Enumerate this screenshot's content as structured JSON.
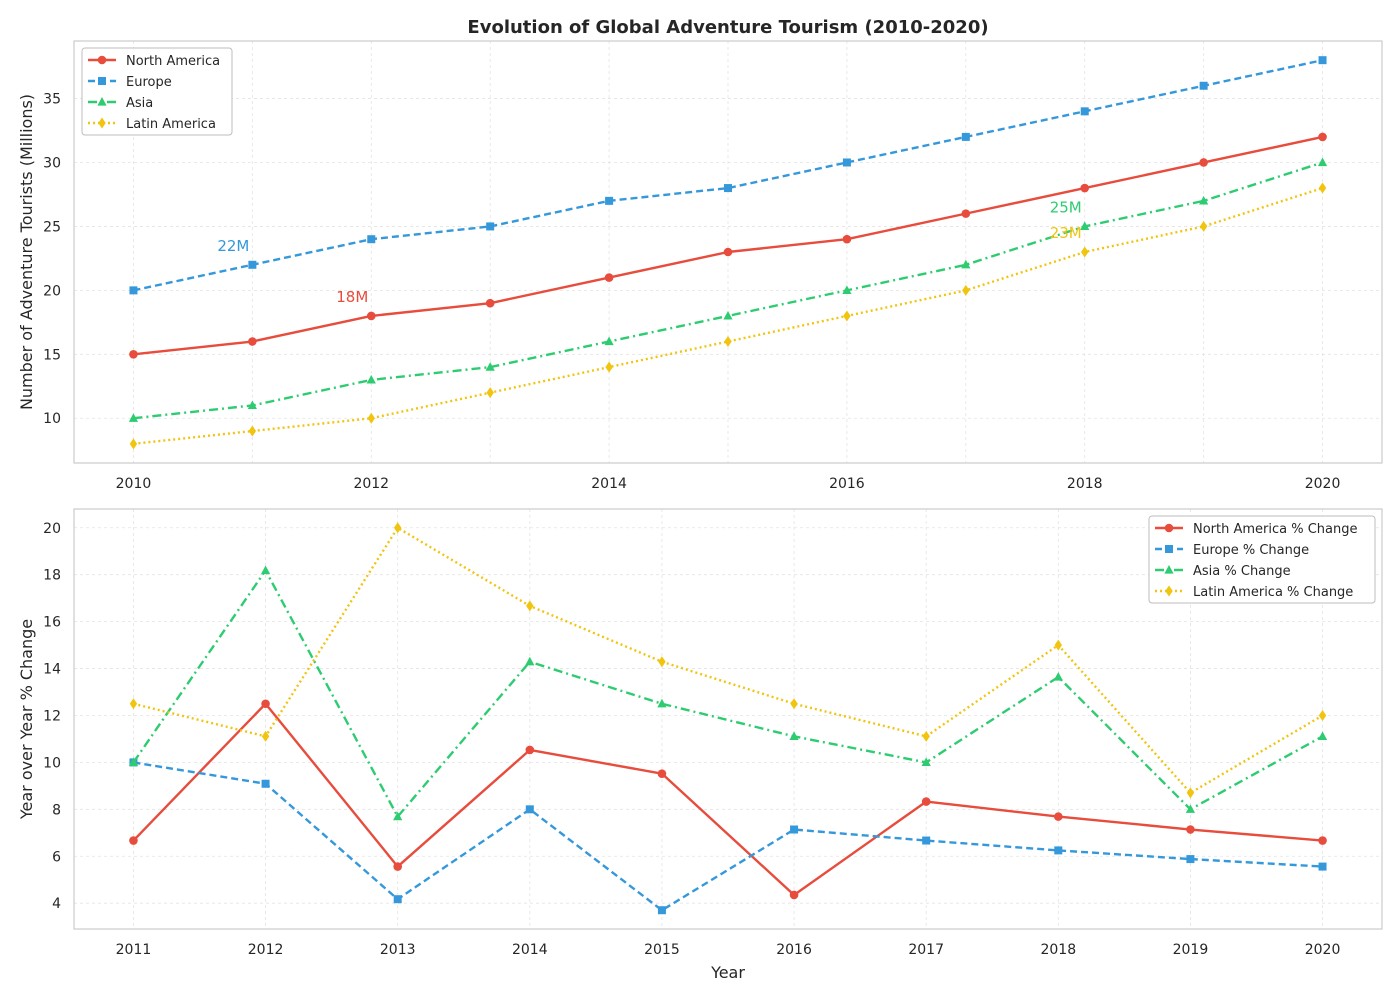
{
  "title": "Evolution of Global Adventure Tourism (2010-2020)",
  "chart_data": [
    {
      "type": "line",
      "title": "Evolution of Global Adventure Tourism (2010-2020)",
      "xlabel": "",
      "ylabel": "Number of Adventure Tourists (Millions)",
      "x": [
        2010,
        2011,
        2012,
        2013,
        2014,
        2015,
        2016,
        2017,
        2018,
        2019,
        2020
      ],
      "x_ticks": [
        "2010",
        "2012",
        "2014",
        "2016",
        "2018",
        "2020"
      ],
      "xlim": [
        2009.5,
        2020.5
      ],
      "ylim": [
        6.5,
        39.5
      ],
      "y_ticks": [
        10,
        15,
        20,
        25,
        30,
        35
      ],
      "grid": true,
      "legend_position": "top-left",
      "series": [
        {
          "name": "North America",
          "color": "#e74c3c",
          "style": "solid",
          "marker": "circle",
          "values": [
            15,
            16,
            18,
            19,
            21,
            23,
            24,
            26,
            28,
            30,
            32
          ]
        },
        {
          "name": "Europe",
          "color": "#3498db",
          "style": "dashed",
          "marker": "square",
          "values": [
            20,
            22,
            24,
            25,
            27,
            28,
            30,
            32,
            34,
            36,
            38
          ]
        },
        {
          "name": "Asia",
          "color": "#2ecc71",
          "style": "dashdot",
          "marker": "triangle",
          "values": [
            10,
            11,
            13,
            14,
            16,
            18,
            20,
            22,
            25,
            27,
            30
          ]
        },
        {
          "name": "Latin America",
          "color": "#f1c40f",
          "style": "dotted",
          "marker": "diamond",
          "values": [
            8,
            9,
            10,
            12,
            14,
            16,
            18,
            20,
            23,
            25,
            28
          ]
        }
      ],
      "annotations": [
        {
          "text": "22M",
          "x": 2011,
          "y": 22,
          "color": "#3498db"
        },
        {
          "text": "18M",
          "x": 2012,
          "y": 18,
          "color": "#e74c3c"
        },
        {
          "text": "25M",
          "x": 2018,
          "y": 25,
          "color": "#2ecc71"
        },
        {
          "text": "23M",
          "x": 2018,
          "y": 23,
          "color": "#f1c40f"
        }
      ]
    },
    {
      "type": "line",
      "title": "",
      "xlabel": "Year",
      "ylabel": "Year over Year % Change",
      "x": [
        2011,
        2012,
        2013,
        2014,
        2015,
        2016,
        2017,
        2018,
        2019,
        2020
      ],
      "x_ticks": [
        "2011",
        "2012",
        "2013",
        "2014",
        "2015",
        "2016",
        "2017",
        "2018",
        "2019",
        "2020"
      ],
      "xlim": [
        2010.55,
        2020.45
      ],
      "ylim": [
        2.9,
        20.8
      ],
      "y_ticks": [
        4,
        6,
        8,
        10,
        12,
        14,
        16,
        18,
        20
      ],
      "grid": true,
      "legend_position": "top-right",
      "series": [
        {
          "name": "North America % Change",
          "color": "#e74c3c",
          "style": "solid",
          "marker": "circle",
          "values": [
            6.67,
            12.5,
            5.56,
            10.53,
            9.52,
            4.35,
            8.33,
            7.69,
            7.14,
            6.67
          ]
        },
        {
          "name": "Europe % Change",
          "color": "#3498db",
          "style": "dashed",
          "marker": "square",
          "values": [
            10.0,
            9.09,
            4.17,
            8.0,
            3.7,
            7.14,
            6.67,
            6.25,
            5.88,
            5.56
          ]
        },
        {
          "name": "Asia % Change",
          "color": "#2ecc71",
          "style": "dashdot",
          "marker": "triangle",
          "values": [
            10.0,
            18.18,
            7.69,
            14.29,
            12.5,
            11.11,
            10.0,
            13.64,
            8.0,
            11.11
          ]
        },
        {
          "name": "Latin America % Change",
          "color": "#f1c40f",
          "style": "dotted",
          "marker": "diamond",
          "values": [
            12.5,
            11.11,
            20.0,
            16.67,
            14.29,
            12.5,
            11.11,
            15.0,
            8.7,
            12.0
          ]
        }
      ]
    }
  ]
}
